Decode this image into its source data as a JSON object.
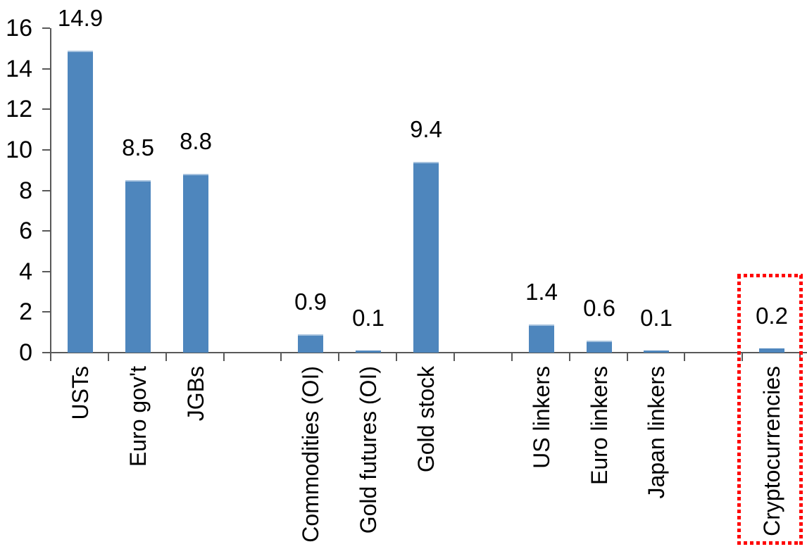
{
  "chart_data": {
    "type": "bar",
    "categories": [
      "USTs",
      "Euro gov't",
      "JGBs",
      "Commodities (OI)",
      "Gold futures (OI)",
      "Gold stock",
      "US linkers",
      "Euro linkers",
      "Japan linkers",
      "Cryptocurrencies"
    ],
    "values": [
      14.9,
      8.5,
      8.8,
      0.9,
      0.1,
      9.4,
      1.4,
      0.6,
      0.1,
      0.2
    ],
    "data_labels": [
      "14.9",
      "8.5",
      "8.8",
      "0.9",
      "0.1",
      "9.4",
      "1.4",
      "0.6",
      "0.1",
      "0.2"
    ],
    "slot_indices": [
      0,
      1,
      2,
      4,
      5,
      6,
      8,
      9,
      10,
      12
    ],
    "total_slots": 13,
    "y_ticks": [
      "0",
      "2",
      "4",
      "6",
      "8",
      "10",
      "12",
      "14",
      "16"
    ],
    "ylim": [
      0,
      16
    ],
    "grid": false,
    "legend": false,
    "xlabel": "",
    "ylabel": "",
    "x_labels_rotation_degrees": 90,
    "bar_color": "#4e86bd",
    "bar_top_edge_color": "#a6c2de",
    "axis_color": "#595959",
    "highlight": {
      "category": "Cryptocurrencies",
      "box_color": "#ff0000",
      "box_style": "dotted"
    }
  }
}
